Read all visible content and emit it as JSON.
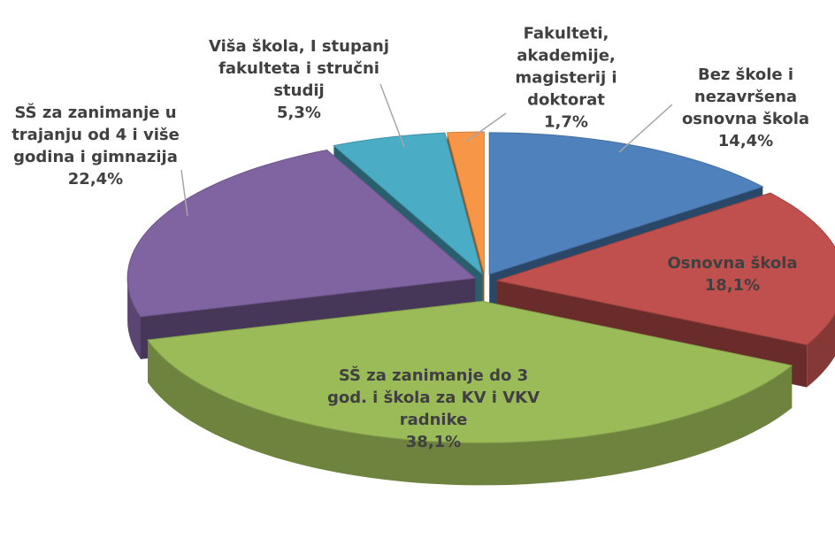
{
  "chart_data": {
    "type": "pie",
    "categories": [
      "Bez škole i nezavršena osnovna škola",
      "Osnovna škola",
      "SŠ za zanimanje do 3 god. i škola za KV i VKV radnike",
      "SŠ za zanimanje u trajanju od 4 i više godina i gimnazija",
      "Viša škola, I stupanj fakulteta i stručni studij",
      "Fakulteti, akademije, magisterij i doktorat"
    ],
    "values": [
      14.4,
      18.1,
      38.1,
      22.4,
      5.3,
      1.7
    ],
    "value_labels": [
      "14,4%",
      "18,1%",
      "38,1%",
      "22,4%",
      "5,3%",
      "1,7%"
    ],
    "colors": [
      "#4f81bd",
      "#c0504d",
      "#9bbb59",
      "#8064a2",
      "#4bacc6",
      "#f79646"
    ]
  }
}
